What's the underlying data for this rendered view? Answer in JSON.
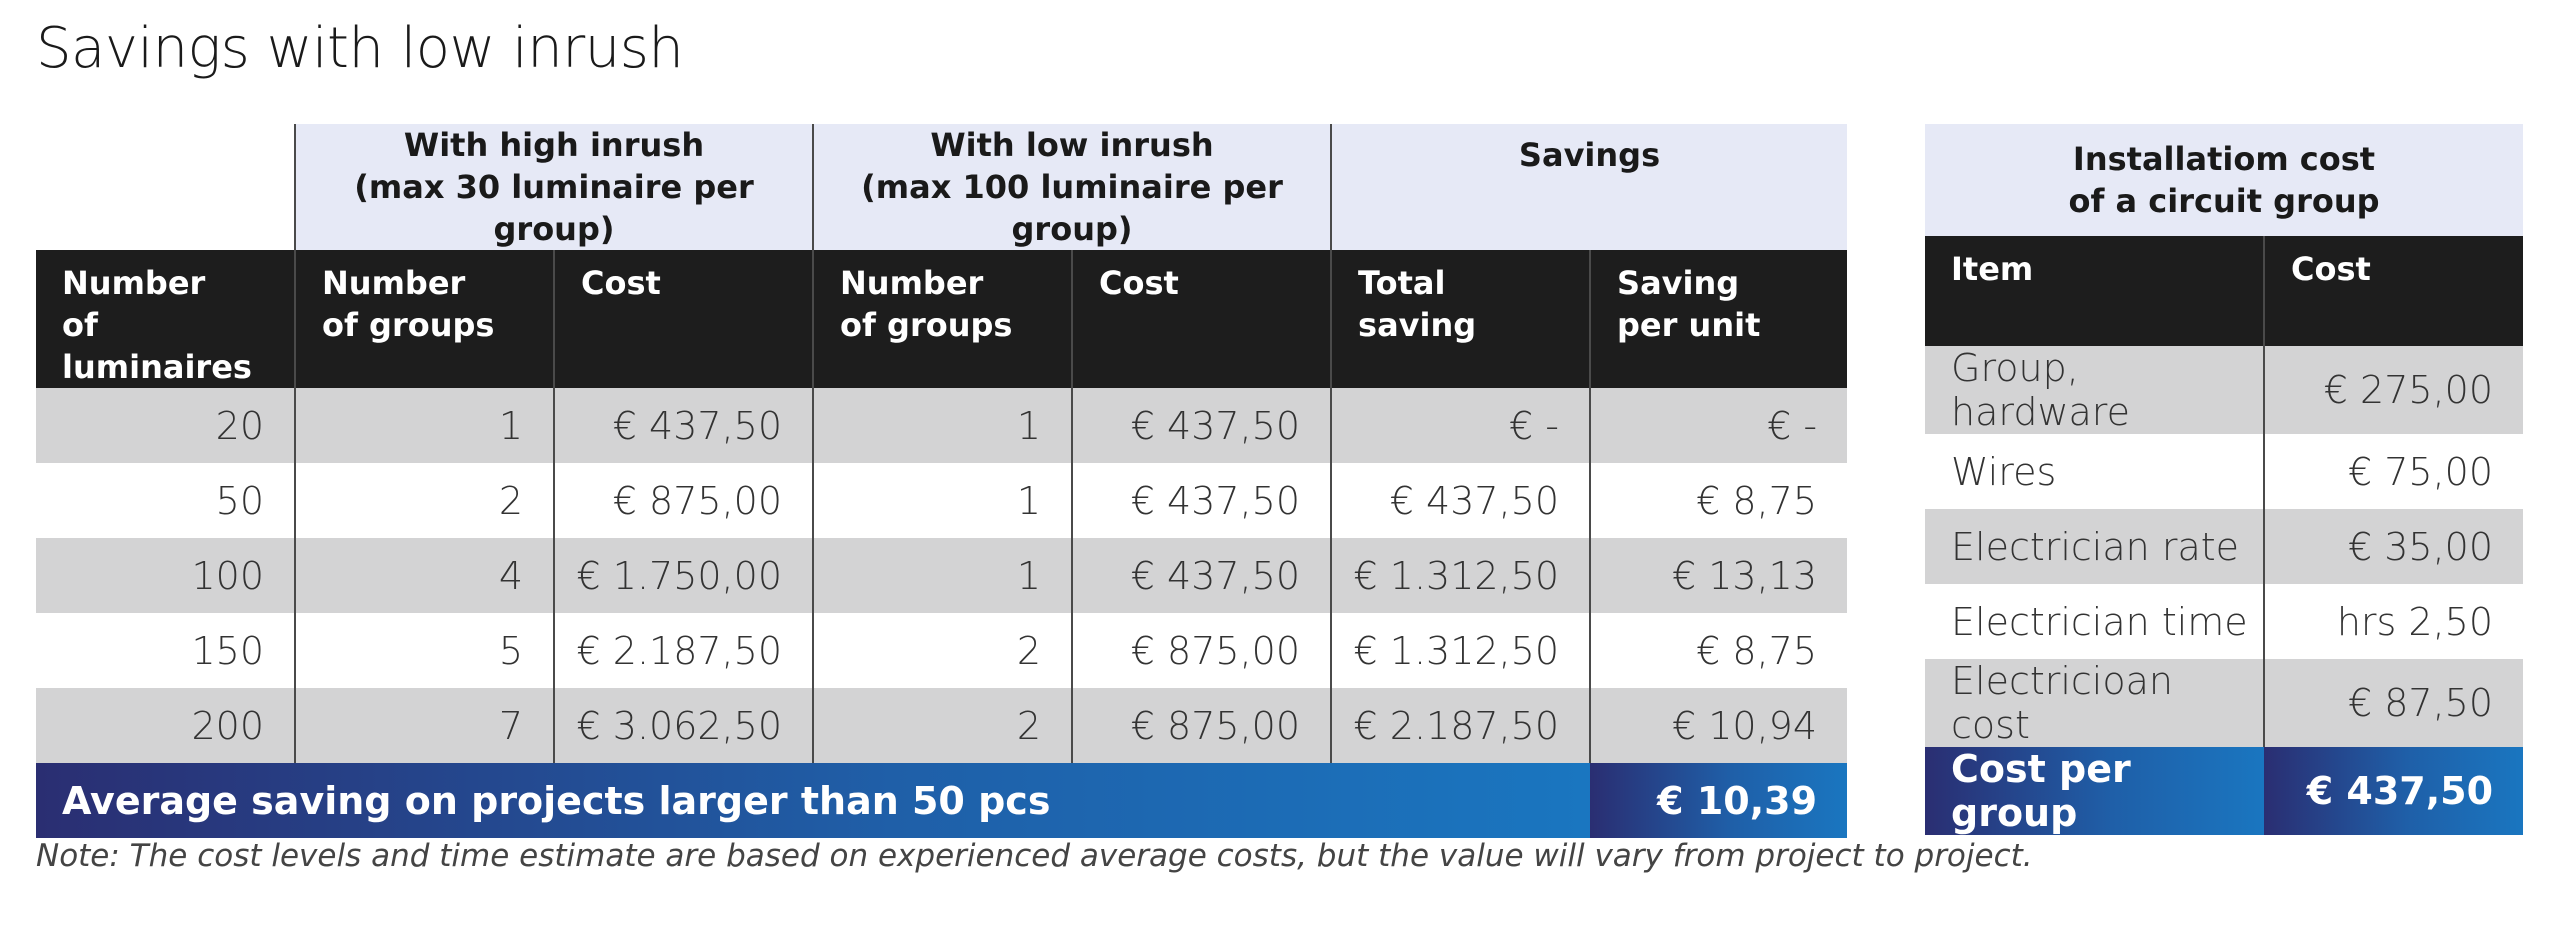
{
  "title": "Savings with low inrush",
  "main_table": {
    "group_headers": {
      "high_inrush": [
        "With high inrush",
        "(max 30 luminaire per group)"
      ],
      "low_inrush": [
        "With low inrush",
        "(max 100 luminaire per group)"
      ],
      "savings": "Savings"
    },
    "columns": {
      "num_luminaires": [
        "Number",
        "of luminaires"
      ],
      "high_groups": [
        "Number",
        "of groups"
      ],
      "high_cost": "Cost",
      "low_groups": [
        "Number",
        "of groups"
      ],
      "low_cost": "Cost",
      "total_saving": [
        "Total",
        "saving"
      ],
      "saving_per_unit": [
        "Saving",
        "per unit"
      ]
    },
    "rows": [
      [
        "20",
        "1",
        "€ 437,50",
        "1",
        "€ 437,50",
        "€ -",
        "€ -"
      ],
      [
        "50",
        "2",
        "€ 875,00",
        "1",
        "€ 437,50",
        "€ 437,50",
        "€ 8,75"
      ],
      [
        "100",
        "4",
        "€ 1.750,00",
        "1",
        "€ 437,50",
        "€ 1.312,50",
        "€ 13,13"
      ],
      [
        "150",
        "5",
        "€ 2.187,50",
        "2",
        "€ 875,00",
        "€ 1.312,50",
        "€ 8,75"
      ],
      [
        "200",
        "7",
        "€ 3.062,50",
        "2",
        "€ 875,00",
        "€ 2.187,50",
        "€ 10,94"
      ]
    ],
    "total": {
      "label": "Average saving on projects larger than 50 pcs",
      "value": "€ 10,39"
    }
  },
  "cost_table": {
    "header": [
      "Installatiom cost",
      "of a circuit group"
    ],
    "columns": {
      "item": "Item",
      "cost": "Cost"
    },
    "rows": [
      [
        "Group, hardware",
        "€ 275,00"
      ],
      [
        "Wires",
        "€ 75,00"
      ],
      [
        "Electrician rate",
        "€ 35,00"
      ],
      [
        "Electrician time",
        "hrs 2,50"
      ],
      [
        "Electricioan cost",
        "€ 87,50"
      ]
    ],
    "total": {
      "label": "Cost per group",
      "value": "€ 437,50"
    }
  },
  "note": "Note: The cost levels and time estimate are based on experienced average costs, but the value will vary from project to project.",
  "colors": {
    "group_header_bg": "#e6e9f6",
    "column_header_bg": "#1d1d1d",
    "shaded_row_bg": "#d3d3d4",
    "total_gradient_start": "#2a2e72",
    "total_gradient_end": "#1a76c0"
  }
}
